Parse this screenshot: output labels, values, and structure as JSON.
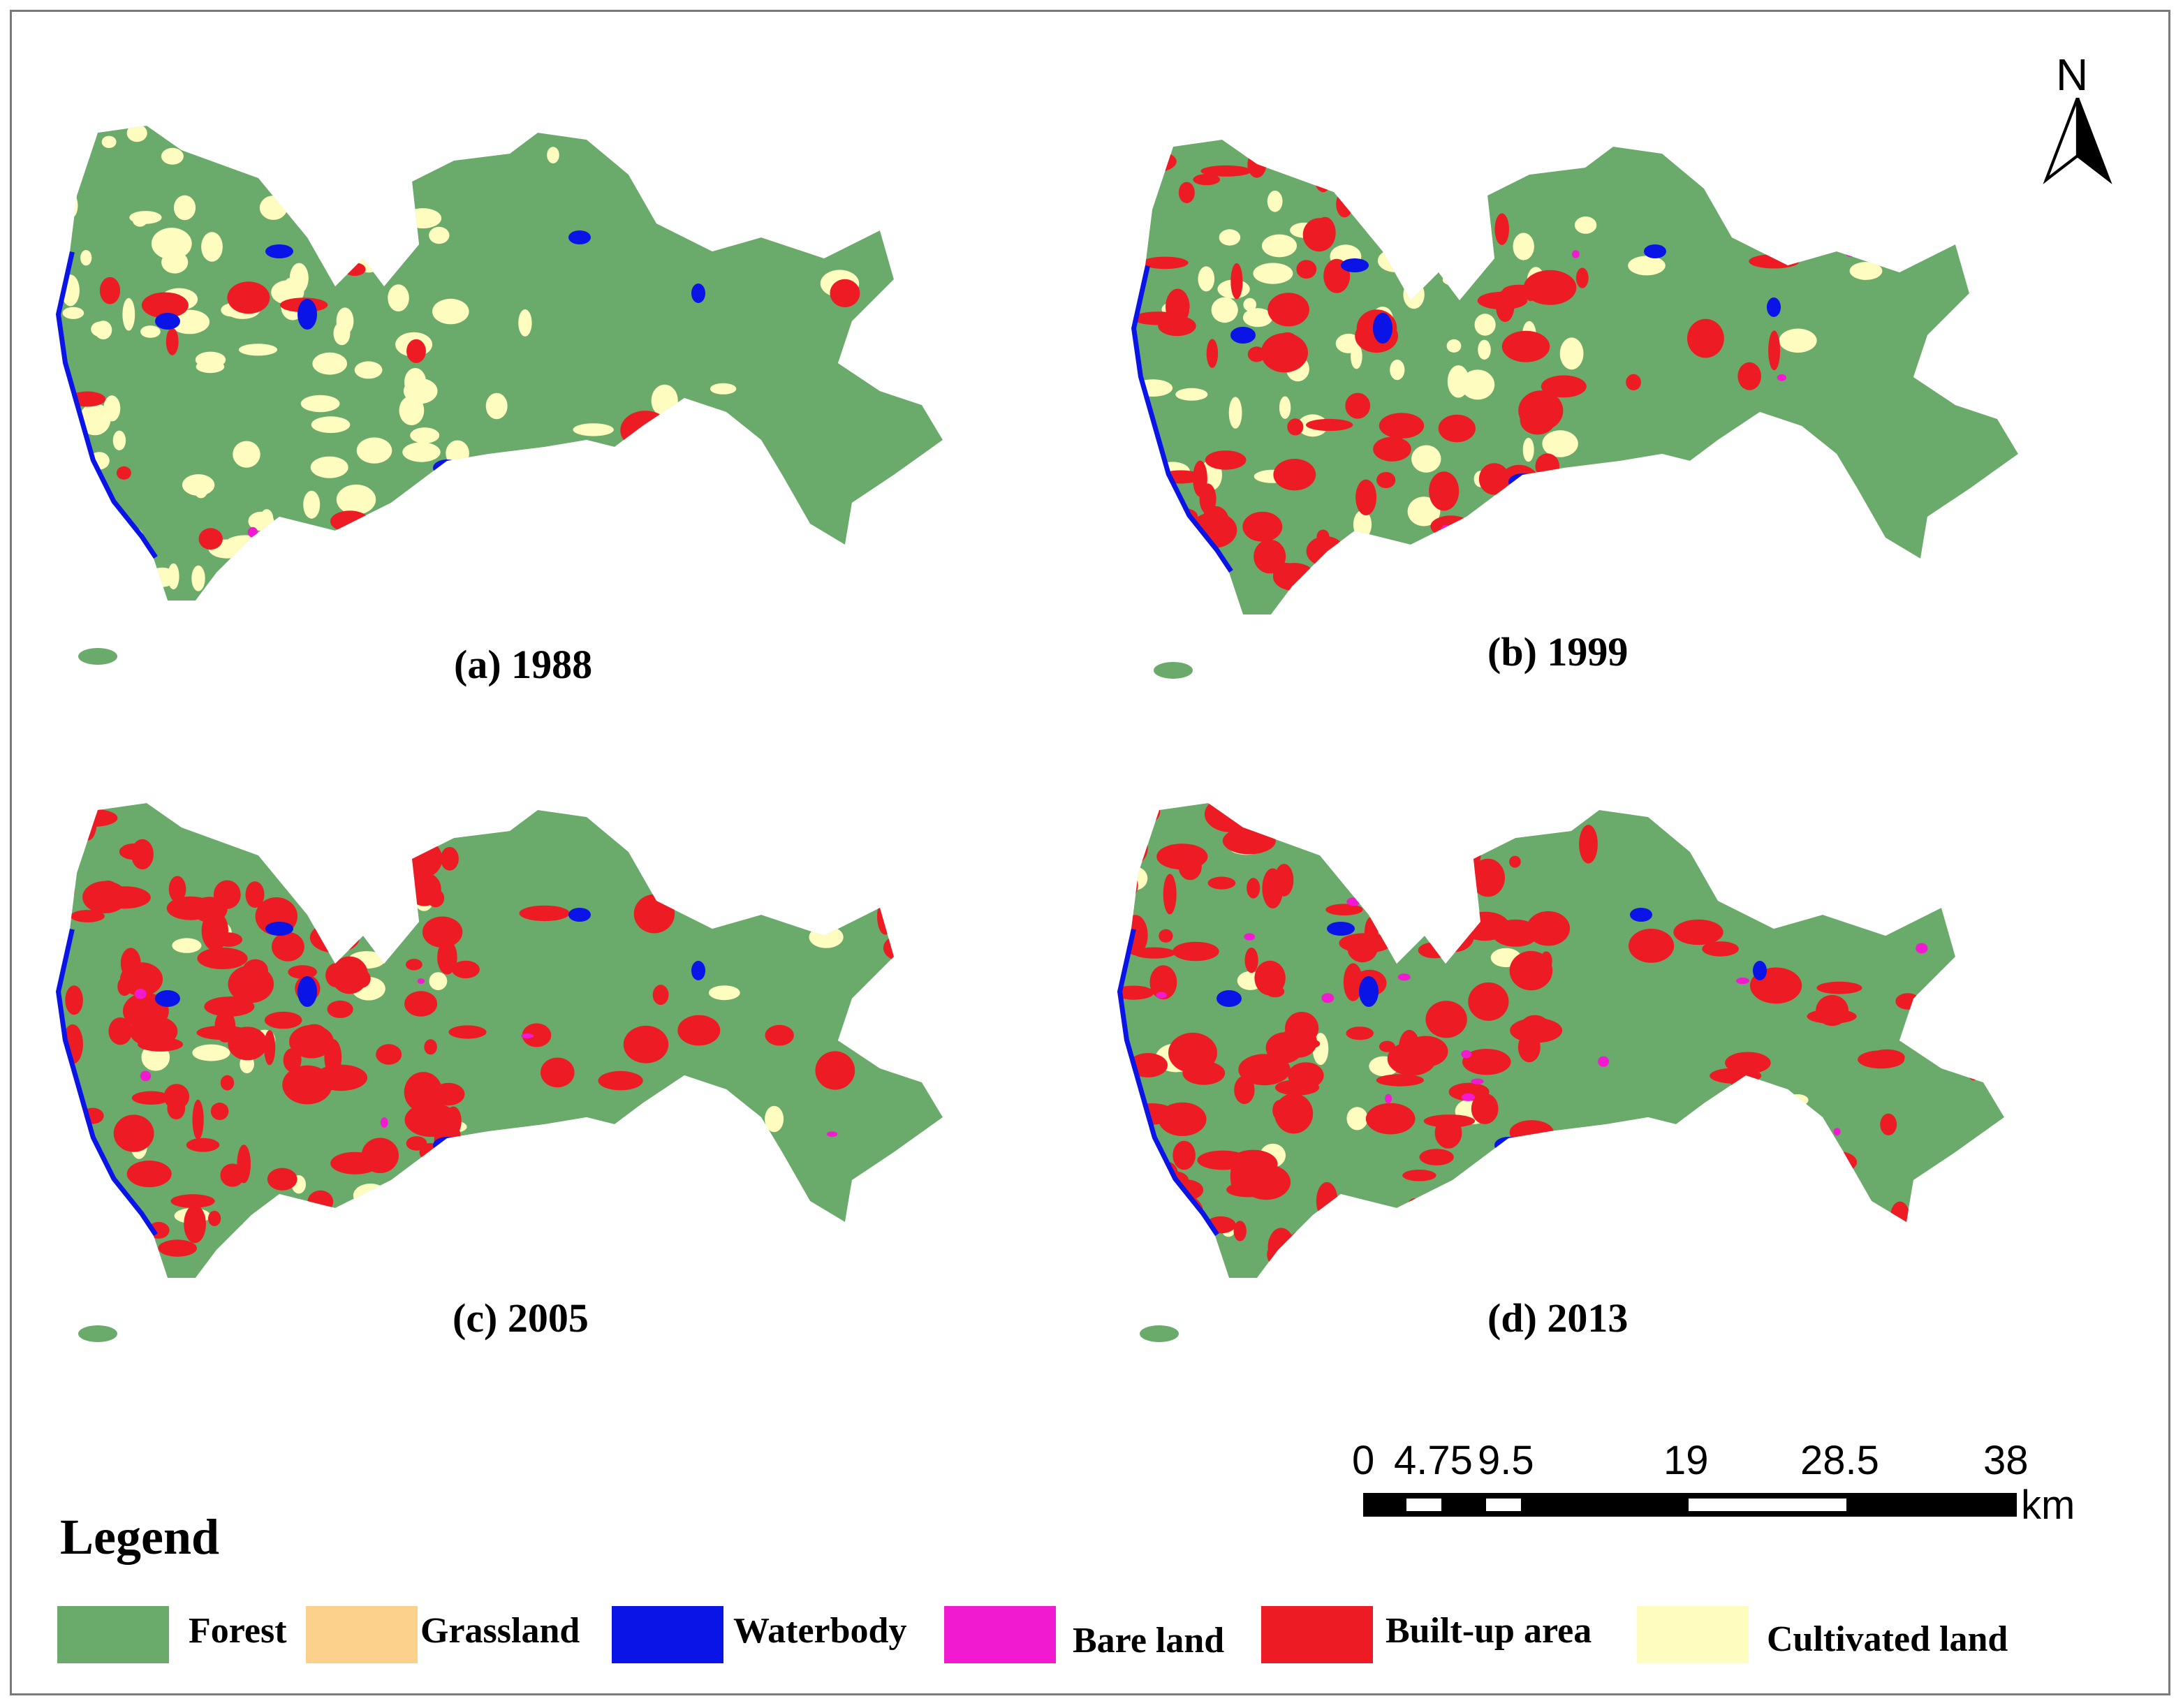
{
  "panels": [
    {
      "caption": "(a) 1988",
      "year": 1988,
      "builtup_level": 0.08,
      "cultivated_level": 0.35,
      "bare_level": 0.01
    },
    {
      "caption": "(b) 1999",
      "year": 1999,
      "builtup_level": 0.35,
      "cultivated_level": 0.2,
      "bare_level": 0.02
    },
    {
      "caption": "(c) 2005",
      "year": 2005,
      "builtup_level": 0.55,
      "cultivated_level": 0.08,
      "bare_level": 0.03
    },
    {
      "caption": "(d) 2013",
      "year": 2013,
      "builtup_level": 0.55,
      "cultivated_level": 0.06,
      "bare_level": 0.1
    }
  ],
  "north_arrow": {
    "label": "N"
  },
  "scale_bar": {
    "ticks": [
      "0",
      "4.75",
      "9.5",
      "19",
      "28.5",
      "38"
    ],
    "unit": "km"
  },
  "legend": {
    "title": "Legend",
    "items": [
      {
        "label": "Forest",
        "color": "#6aaa6a"
      },
      {
        "label": "Grassland",
        "color": "#fad08a"
      },
      {
        "label": "Waterbody",
        "color": "#0a14e6"
      },
      {
        "label": "Bare  land",
        "color": "#f21ad0"
      },
      {
        "label": "Built-up area",
        "color": "#ed1c24"
      },
      {
        "label": "Cultivated land",
        "color": "#fefcbf"
      }
    ]
  }
}
